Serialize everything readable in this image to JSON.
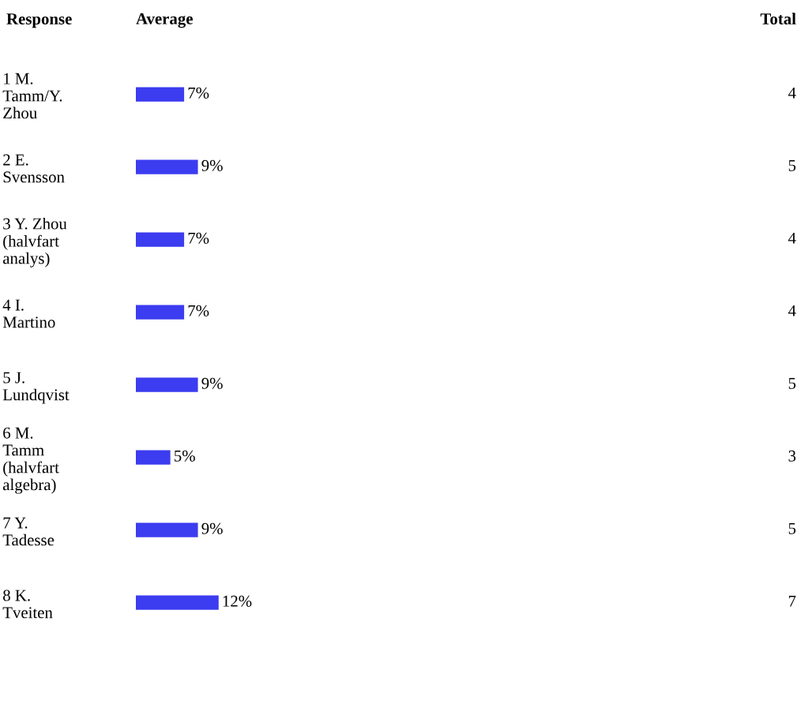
{
  "chart_data": {
    "type": "bar",
    "orientation": "horizontal",
    "ylabel": "Response",
    "xlabel": "Average",
    "categories": [
      "1 M.\nTamm/Y.\nZhou",
      "2 E.\nSvensson",
      "3 Y. Zhou\n(halvfart\nanalys)",
      "4 I.\nMartino",
      "5 J.\nLundqvist",
      "6 M.\nTamm\n(halvfart\nalgebra)",
      "7 Y.\nTadesse",
      "8 K.\nTveiten"
    ],
    "values": [
      7,
      9,
      7,
      7,
      9,
      5,
      9,
      12
    ],
    "value_labels": [
      "7%",
      "9%",
      "7%",
      "7%",
      "9%",
      "5%",
      "9%",
      "12%"
    ],
    "color": "#3c3cf0",
    "tick_labels": "y",
    "grid": false,
    "legend": false,
    "annotations": [
      "Total",
      "4",
      "5",
      "4",
      "4",
      "5",
      "3",
      "5",
      "7"
    ]
  }
}
